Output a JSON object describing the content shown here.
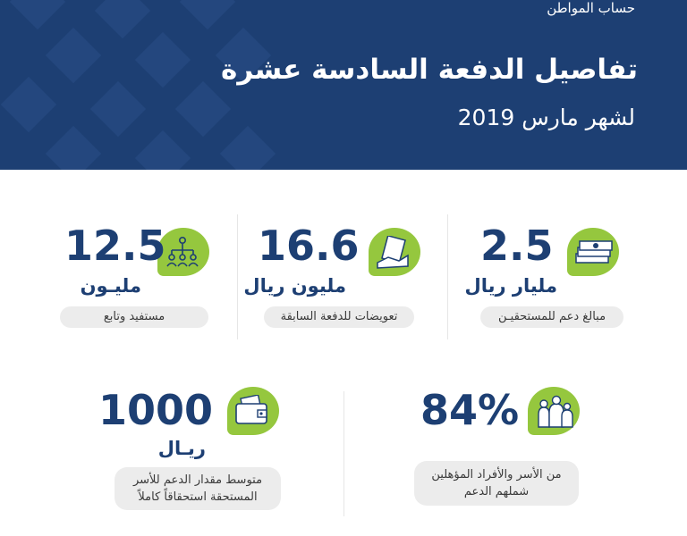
{
  "header": {
    "brand": "حساب المواطن",
    "title": "تفاصيل الدفعة السادسة عشرة",
    "subtitle": "لشهر مارس 2019",
    "background_color": "#1d3f73"
  },
  "stats": [
    {
      "icon": "money-stack-icon",
      "value": "2.5",
      "unit": "مليار ريال",
      "label": "مبالغ دعم للمستحقيـن"
    },
    {
      "icon": "hand-cash-icon",
      "value": "16.6",
      "unit": "مليون ريال",
      "label": "تعويضات للدفعة السابقة"
    },
    {
      "icon": "people-network-icon",
      "value": "12.5",
      "unit": "مليـون",
      "label": "مستفيد وتابع"
    },
    {
      "icon": "family-icon",
      "value": "84%",
      "unit": "",
      "label_line1": "من الأسر والأفراد المؤهلين",
      "label_line2": "شملهم الدعم"
    },
    {
      "icon": "wallet-icon",
      "value": "1000",
      "unit": "ريـال",
      "label_line1": "متوسط مقدار الدعم للأسر",
      "label_line2": "المستحقة استحقاقاً كاملاً"
    }
  ],
  "colors": {
    "accent_green": "#95c73e",
    "navy": "#1d3f73",
    "pill_bg": "#ececec"
  }
}
